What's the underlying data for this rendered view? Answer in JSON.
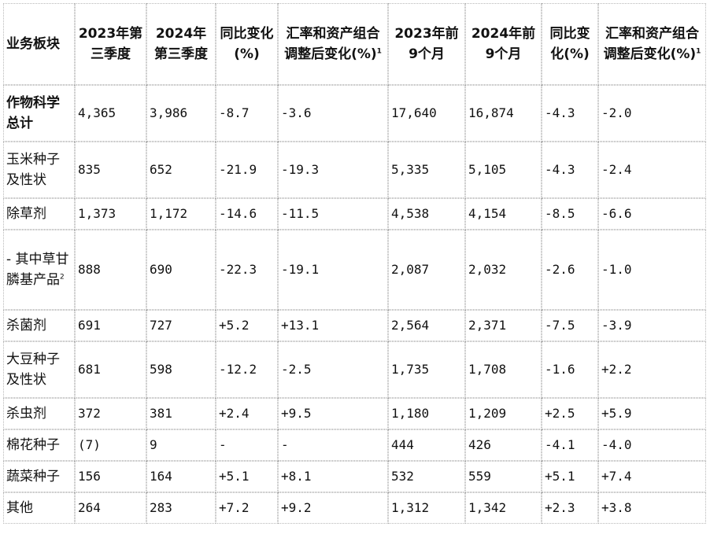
{
  "headers": [
    {
      "text": "业务板块",
      "sup": ""
    },
    {
      "text": "2023年第三季度",
      "sup": ""
    },
    {
      "text": "2024年第三季度",
      "sup": ""
    },
    {
      "text": "同比变化(%)",
      "sup": ""
    },
    {
      "text": "汇率和资产组合调整后变化(%)",
      "sup": "1"
    },
    {
      "text": "2023年前9个月",
      "sup": ""
    },
    {
      "text": "2024年前9个月",
      "sup": ""
    },
    {
      "text": "同比变化(%)",
      "sup": ""
    },
    {
      "text": "汇率和资产组合调整后变化(%)",
      "sup": "1"
    }
  ],
  "rows": [
    {
      "segment": "作物科学总计",
      "sup": "",
      "bold": true,
      "values": [
        "4,365",
        "3,986",
        "-8.7",
        "-3.6",
        "17,640",
        "16,874",
        "-4.3",
        "-2.0"
      ]
    },
    {
      "segment": "玉米种子及性状",
      "sup": "",
      "bold": false,
      "values": [
        "835",
        "652",
        "-21.9",
        "-19.3",
        "5,335",
        "5,105",
        "-4.3",
        "-2.4"
      ]
    },
    {
      "segment": "除草剂",
      "sup": "",
      "bold": false,
      "values": [
        "1,373",
        "1,172",
        "-14.6",
        "-11.5",
        "4,538",
        "4,154",
        "-8.5",
        "-6.6"
      ]
    },
    {
      "segment": "- 其中草甘膦基产品",
      "sup": "2",
      "bold": false,
      "values": [
        "888",
        "690",
        "-22.3",
        "-19.1",
        "2,087",
        "2,032",
        "-2.6",
        "-1.0"
      ]
    },
    {
      "segment": "杀菌剂",
      "sup": "",
      "bold": false,
      "values": [
        "691",
        "727",
        "+5.2",
        "+13.1",
        "2,564",
        "2,371",
        "-7.5",
        "-3.9"
      ]
    },
    {
      "segment": "大豆种子及性状",
      "sup": "",
      "bold": false,
      "values": [
        "681",
        "598",
        "-12.2",
        "-2.5",
        "1,735",
        "1,708",
        "-1.6",
        "+2.2"
      ]
    },
    {
      "segment": "杀虫剂",
      "sup": "",
      "bold": false,
      "values": [
        "372",
        "381",
        "+2.4",
        "+9.5",
        "1,180",
        "1,209",
        "+2.5",
        "+5.9"
      ]
    },
    {
      "segment": "棉花种子",
      "sup": "",
      "bold": false,
      "values": [
        "(7)",
        "9",
        "-",
        "-",
        "444",
        "426",
        "-4.1",
        "-4.0"
      ]
    },
    {
      "segment": "蔬菜种子",
      "sup": "",
      "bold": false,
      "values": [
        "156",
        "164",
        "+5.1",
        "+8.1",
        "532",
        "559",
        "+5.1",
        "+7.4"
      ]
    },
    {
      "segment": "其他",
      "sup": "",
      "bold": false,
      "values": [
        "264",
        "283",
        "+7.2",
        "+9.2",
        "1,312",
        "1,342",
        "+2.3",
        "+3.8"
      ]
    }
  ]
}
